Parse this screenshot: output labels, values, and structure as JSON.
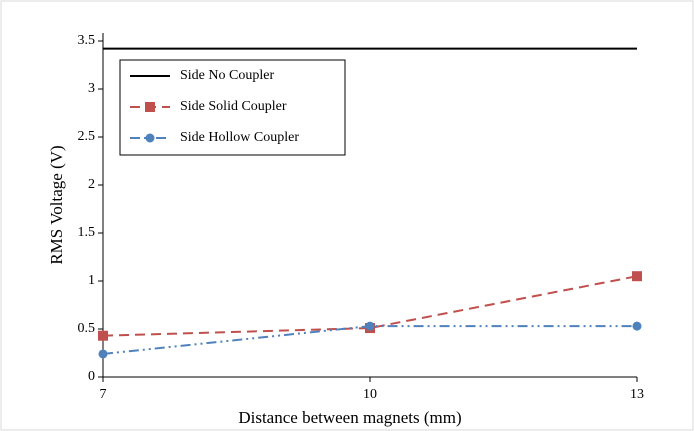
{
  "chart_data": {
    "type": "line",
    "x_label": "Distance between magnets (mm)",
    "y_label": "RMS Voltage (V)",
    "x": [
      7,
      10,
      13
    ],
    "xlim": [
      7,
      13
    ],
    "xticks": [
      7,
      10,
      13
    ],
    "ylim": [
      0,
      3.5
    ],
    "yticks": [
      0,
      0.5,
      1,
      1.5,
      2,
      2.5,
      3,
      3.5
    ],
    "legend": "upper-left",
    "series": [
      {
        "name": "Side No Coupler",
        "color": "#000000",
        "line_style": "solid",
        "marker": "none",
        "values": [
          3.42,
          3.42,
          3.42
        ]
      },
      {
        "name": "Side Solid Coupler",
        "color": "#c0504d",
        "line_style": "dashed",
        "marker": "square",
        "values": [
          0.43,
          0.51,
          1.05
        ]
      },
      {
        "name": "Side Hollow Coupler",
        "color": "#4f81bd",
        "line_style": "dash-dot-dot",
        "marker": "circle",
        "values": [
          0.24,
          0.53,
          0.53
        ]
      }
    ]
  }
}
